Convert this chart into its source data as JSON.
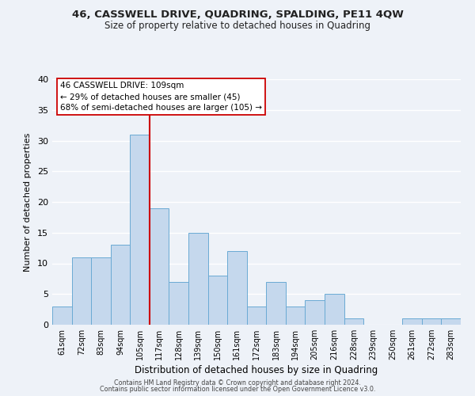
{
  "title": "46, CASSWELL DRIVE, QUADRING, SPALDING, PE11 4QW",
  "subtitle": "Size of property relative to detached houses in Quadring",
  "xlabel": "Distribution of detached houses by size in Quadring",
  "ylabel": "Number of detached properties",
  "bar_labels": [
    "61sqm",
    "72sqm",
    "83sqm",
    "94sqm",
    "105sqm",
    "117sqm",
    "128sqm",
    "139sqm",
    "150sqm",
    "161sqm",
    "172sqm",
    "183sqm",
    "194sqm",
    "205sqm",
    "216sqm",
    "228sqm",
    "239sqm",
    "250sqm",
    "261sqm",
    "272sqm",
    "283sqm"
  ],
  "bar_values": [
    3,
    11,
    11,
    13,
    31,
    19,
    7,
    15,
    8,
    12,
    3,
    7,
    3,
    4,
    5,
    1,
    0,
    0,
    1,
    1,
    1
  ],
  "bar_color": "#c5d8ed",
  "bar_edge_color": "#6aaad4",
  "vline_color": "#cc0000",
  "ylim": [
    0,
    40
  ],
  "yticks": [
    0,
    5,
    10,
    15,
    20,
    25,
    30,
    35,
    40
  ],
  "annotation_title": "46 CASSWELL DRIVE: 109sqm",
  "annotation_line1": "← 29% of detached houses are smaller (45)",
  "annotation_line2": "68% of semi-detached houses are larger (105) →",
  "annotation_box_facecolor": "#ffffff",
  "annotation_box_edgecolor": "#cc0000",
  "footer1": "Contains HM Land Registry data © Crown copyright and database right 2024.",
  "footer2": "Contains public sector information licensed under the Open Government Licence v3.0.",
  "bg_color": "#eef2f8",
  "grid_color": "#ffffff"
}
